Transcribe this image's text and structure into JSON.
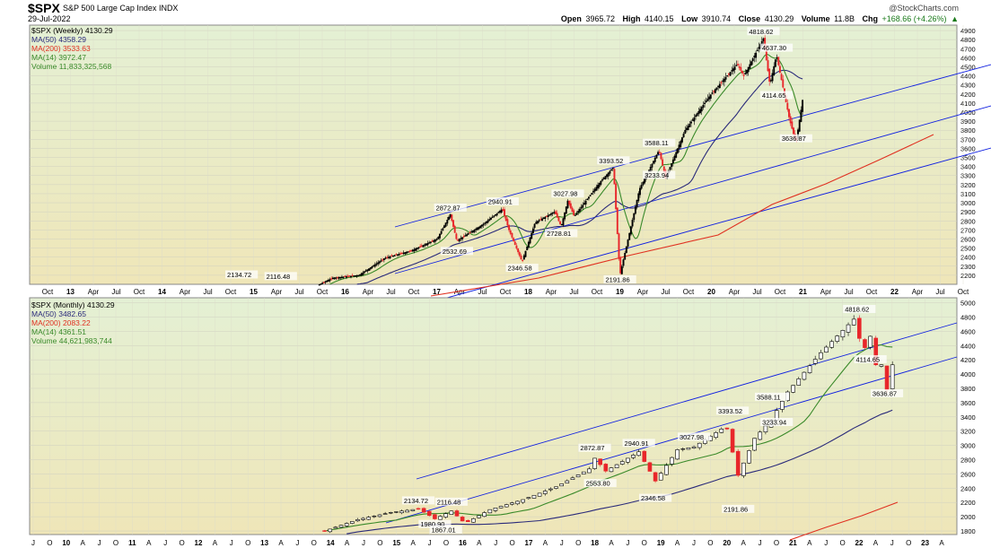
{
  "header": {
    "symbol": "$SPX",
    "name": "S&P 500 Large Cap Index",
    "exchange": "INDX",
    "date": "29-Jul-2022",
    "watermark": "@StockCharts.com",
    "open_label": "Open",
    "open": "3965.72",
    "high_label": "High",
    "high": "4140.15",
    "low_label": "Low",
    "low": "3910.74",
    "close_label": "Close",
    "close": "4130.29",
    "volume_label": "Volume",
    "volume": "11.8B",
    "chg_label": "Chg",
    "chg": "+168.66 (+4.26%)",
    "chg_arrow": "▲"
  },
  "colors": {
    "panel_top": "#e4f0d4",
    "panel_bottom": "#efe6b8",
    "up": "#000000",
    "down": "#e8262a",
    "ma50": "#2a2a7a",
    "ma200": "#e03020",
    "ma14": "#3a8a2a",
    "trend": "#1020e0"
  },
  "chart_data": [
    {
      "type": "candlestick",
      "title": "$SPX (Weekly) 4130.29",
      "legend": [
        "MA(50) 4358.29",
        "MA(200) 3533.63",
        "MA(14) 3972.47",
        "Volume 11,833,325,568"
      ],
      "y_ticks": [
        2200,
        2300,
        2400,
        2500,
        2600,
        2700,
        2800,
        2900,
        3000,
        3100,
        3200,
        3300,
        3400,
        3500,
        3600,
        3700,
        3800,
        3900,
        4000,
        4100,
        4200,
        4300,
        4400,
        4500,
        4600,
        4700,
        4800,
        4900
      ],
      "x_ticks": [
        "Oct",
        "13",
        "Apr",
        "Jul",
        "Oct",
        "14",
        "Apr",
        "Jul",
        "Oct",
        "15",
        "Apr",
        "Jul",
        "Oct",
        "16",
        "Apr",
        "Jul",
        "Oct",
        "17",
        "Apr",
        "Jul",
        "Oct",
        "18",
        "Apr",
        "Jul",
        "Oct",
        "19",
        "Apr",
        "Jul",
        "Oct",
        "20",
        "Apr",
        "Jul",
        "Oct",
        "21",
        "Apr",
        "Jul",
        "Oct",
        "22",
        "Apr",
        "Jul",
        "Oct"
      ],
      "annotations": [
        {
          "label": "2134.72",
          "x": "2015-05",
          "y": 2134.72
        },
        {
          "label": "2116.48",
          "x": "2015-11",
          "y": 2116.48
        },
        {
          "label": "2872.87",
          "x": "2018-01",
          "y": 2872.87
        },
        {
          "label": "2532.69",
          "x": "2018-02",
          "y": 2532.69
        },
        {
          "label": "2940.91",
          "x": "2018-09",
          "y": 2940.91
        },
        {
          "label": "2346.58",
          "x": "2018-12",
          "y": 2346.58
        },
        {
          "label": "3027.98",
          "x": "2019-07",
          "y": 3027.98
        },
        {
          "label": "2728.81",
          "x": "2019-06",
          "y": 2728.81
        },
        {
          "label": "3393.52",
          "x": "2020-02",
          "y": 3393.52
        },
        {
          "label": "2191.86",
          "x": "2020-03",
          "y": 2191.86
        },
        {
          "label": "3588.11",
          "x": "2020-09",
          "y": 3588.11
        },
        {
          "label": "3233.94",
          "x": "2020-09",
          "y": 3233.94
        },
        {
          "label": "4818.62",
          "x": "2022-01",
          "y": 4818.62
        },
        {
          "label": "4637.30",
          "x": "2022-03",
          "y": 4637.3
        },
        {
          "label": "4114.65",
          "x": "2022-03",
          "y": 4114.65
        },
        {
          "label": "3636.87",
          "x": "2022-06",
          "y": 3636.87
        }
      ],
      "key_path": [
        [
          "2016-01",
          1880
        ],
        [
          "2016-03",
          2030
        ],
        [
          "2016-07",
          2170
        ],
        [
          "2016-11",
          2200
        ],
        [
          "2017-03",
          2390
        ],
        [
          "2017-07",
          2470
        ],
        [
          "2017-11",
          2600
        ],
        [
          "2018-01",
          2872
        ],
        [
          "2018-02",
          2580
        ],
        [
          "2018-06",
          2760
        ],
        [
          "2018-09",
          2930
        ],
        [
          "2018-10",
          2700
        ],
        [
          "2018-12",
          2350
        ],
        [
          "2019-02",
          2780
        ],
        [
          "2019-05",
          2900
        ],
        [
          "2019-06",
          2740
        ],
        [
          "2019-07",
          3020
        ],
        [
          "2019-08",
          2850
        ],
        [
          "2019-12",
          3230
        ],
        [
          "2020-02",
          3390
        ],
        [
          "2020-03",
          2200
        ],
        [
          "2020-06",
          3150
        ],
        [
          "2020-09",
          3580
        ],
        [
          "2020-10",
          3270
        ],
        [
          "2021-01",
          3800
        ],
        [
          "2021-05",
          4200
        ],
        [
          "2021-09",
          4530
        ],
        [
          "2021-10",
          4400
        ],
        [
          "2022-01",
          4810
        ],
        [
          "2022-02",
          4300
        ],
        [
          "2022-03",
          4630
        ],
        [
          "2022-05",
          3920
        ],
        [
          "2022-06",
          3660
        ],
        [
          "2022-07",
          4130
        ]
      ]
    },
    {
      "type": "candlestick",
      "title": "$SPX (Monthly) 4130.29",
      "legend": [
        "MA(50) 3482.65",
        "MA(200) 2083.22",
        "MA(14) 4361.51",
        "Volume 44,621,983,744"
      ],
      "y_ticks": [
        1800,
        2000,
        2200,
        2400,
        2600,
        2800,
        3000,
        3200,
        3400,
        3600,
        3800,
        4000,
        4200,
        4400,
        4600,
        4800,
        5000
      ],
      "x_ticks": [
        "J",
        "O",
        "10",
        "A",
        "J",
        "O",
        "11",
        "A",
        "J",
        "O",
        "12",
        "A",
        "J",
        "O",
        "13",
        "A",
        "J",
        "O",
        "14",
        "A",
        "J",
        "O",
        "15",
        "A",
        "J",
        "O",
        "16",
        "A",
        "J",
        "O",
        "17",
        "A",
        "J",
        "O",
        "18",
        "A",
        "J",
        "O",
        "19",
        "A",
        "J",
        "O",
        "20",
        "A",
        "J",
        "O",
        "21",
        "A",
        "J",
        "O",
        "22",
        "A",
        "J",
        "O",
        "23",
        "A"
      ],
      "annotations": [
        {
          "label": "4818.62",
          "x": "2022-01",
          "y": 4818.62
        },
        {
          "label": "4114.65",
          "x": "2022-03",
          "y": 4114.65
        },
        {
          "label": "3636.87",
          "x": "2022-06",
          "y": 3636.87
        },
        {
          "label": "3588.11",
          "x": "2020-09",
          "y": 3588.11
        },
        {
          "label": "3393.52",
          "x": "2020-02",
          "y": 3393.52
        },
        {
          "label": "3233.94",
          "x": "2020-10",
          "y": 3233.94
        },
        {
          "label": "3027.98",
          "x": "2019-07",
          "y": 3027.98
        },
        {
          "label": "2940.91",
          "x": "2018-09",
          "y": 2940.91
        },
        {
          "label": "2872.87",
          "x": "2018-01",
          "y": 2872.87
        },
        {
          "label": "2553.80",
          "x": "2018-02",
          "y": 2553.8
        },
        {
          "label": "2346.58",
          "x": "2018-12",
          "y": 2346.58
        },
        {
          "label": "2191.86",
          "x": "2020-03",
          "y": 2191.86
        },
        {
          "label": "2134.72",
          "x": "2015-05",
          "y": 2134.72
        },
        {
          "label": "2116.48",
          "x": "2015-11",
          "y": 2116.48
        },
        {
          "label": "1980.90",
          "x": "2015-08",
          "y": 1980.9
        },
        {
          "label": "1867.01",
          "x": "2015-10",
          "y": 1867.01
        }
      ],
      "key_path": [
        [
          "2013-12",
          1800
        ],
        [
          "2014-06",
          1960
        ],
        [
          "2014-12",
          2060
        ],
        [
          "2015-05",
          2110
        ],
        [
          "2015-08",
          1970
        ],
        [
          "2015-11",
          2080
        ],
        [
          "2016-01",
          1940
        ],
        [
          "2016-02",
          1930
        ],
        [
          "2016-06",
          2100
        ],
        [
          "2016-12",
          2240
        ],
        [
          "2017-06",
          2420
        ],
        [
          "2017-12",
          2670
        ],
        [
          "2018-01",
          2820
        ],
        [
          "2018-03",
          2640
        ],
        [
          "2018-09",
          2910
        ],
        [
          "2018-12",
          2500
        ],
        [
          "2019-04",
          2940
        ],
        [
          "2019-07",
          2980
        ],
        [
          "2019-12",
          3230
        ],
        [
          "2020-01",
          3230
        ],
        [
          "2020-03",
          2580
        ],
        [
          "2020-06",
          3100
        ],
        [
          "2020-09",
          3360
        ],
        [
          "2020-12",
          3750
        ],
        [
          "2021-06",
          4300
        ],
        [
          "2021-12",
          4770
        ],
        [
          "2022-01",
          4500
        ],
        [
          "2022-02",
          4370
        ],
        [
          "2022-03",
          4530
        ],
        [
          "2022-04",
          4130
        ],
        [
          "2022-05",
          4130
        ],
        [
          "2022-06",
          3780
        ],
        [
          "2022-07",
          4130
        ]
      ]
    }
  ]
}
